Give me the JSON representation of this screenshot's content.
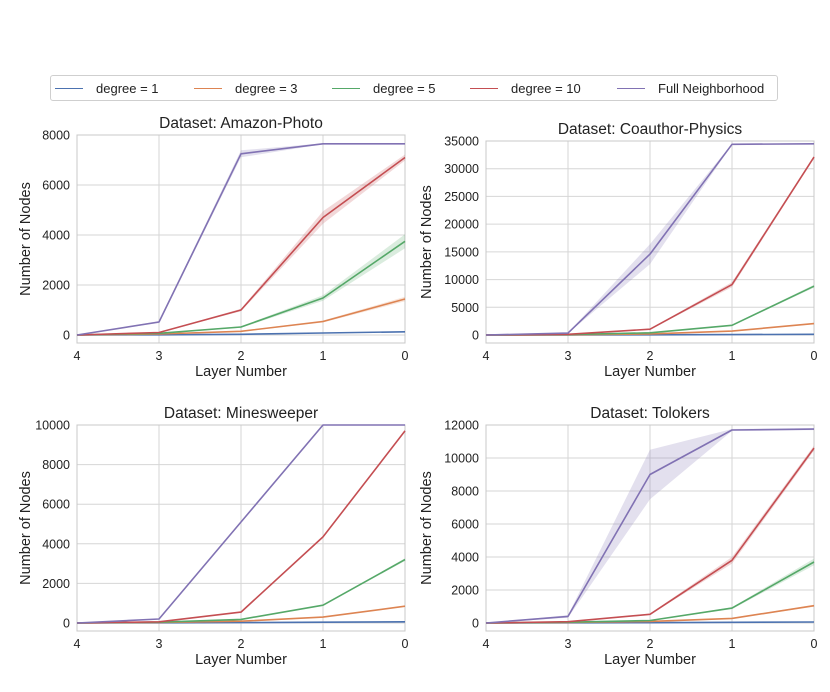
{
  "chart_data": {
    "type": "line",
    "legend": {
      "placement": "top",
      "entries": [
        {
          "name": "degree = 1",
          "color": "#4c72b0"
        },
        {
          "name": "degree = 3",
          "color": "#dd8452"
        },
        {
          "name": "degree = 5",
          "color": "#55a868"
        },
        {
          "name": "degree = 10",
          "color": "#c44e52"
        },
        {
          "name": "Full Neighborhood",
          "color": "#8172b3"
        }
      ]
    },
    "panels": [
      {
        "title": "Dataset: Amazon-Photo",
        "xlabel": "Layer Number",
        "ylabel": "Number of Nodes",
        "x": [
          4,
          3,
          2,
          1,
          0
        ],
        "xlim": [
          4,
          0
        ],
        "ylim": [
          0,
          8000
        ],
        "yticks": [
          0,
          2000,
          4000,
          6000,
          8000
        ],
        "series": [
          {
            "name": "degree = 1",
            "values": [
              0,
              10,
              30,
              80,
              130
            ],
            "band": [
              0,
              0,
              5,
              10,
              15
            ]
          },
          {
            "name": "degree = 3",
            "values": [
              0,
              40,
              150,
              540,
              1440
            ],
            "band": [
              0,
              5,
              20,
              40,
              90
            ]
          },
          {
            "name": "degree = 5",
            "values": [
              0,
              70,
              320,
              1480,
              3750
            ],
            "band": [
              0,
              8,
              30,
              110,
              280
            ]
          },
          {
            "name": "degree = 10",
            "values": [
              0,
              100,
              1000,
              4700,
              7100
            ],
            "band": [
              0,
              10,
              50,
              250,
              120
            ]
          },
          {
            "name": "Full Neighborhood",
            "values": [
              0,
              520,
              7250,
              7650,
              7650
            ],
            "band": [
              0,
              40,
              140,
              20,
              20
            ]
          }
        ]
      },
      {
        "title": "Dataset: Coauthor-Physics",
        "xlabel": "Layer Number",
        "ylabel": "Number of Nodes",
        "x": [
          4,
          3,
          2,
          1,
          0
        ],
        "xlim": [
          4,
          0
        ],
        "ylim": [
          0,
          35000
        ],
        "yticks": [
          0,
          5000,
          10000,
          15000,
          20000,
          25000,
          30000,
          35000
        ],
        "series": [
          {
            "name": "degree = 1",
            "values": [
              0,
              10,
              30,
              70,
              120
            ],
            "band": [
              0,
              0,
              5,
              10,
              10
            ]
          },
          {
            "name": "degree = 3",
            "values": [
              0,
              40,
              200,
              700,
              2050
            ],
            "band": [
              0,
              5,
              20,
              50,
              90
            ]
          },
          {
            "name": "degree = 5",
            "values": [
              0,
              70,
              400,
              1750,
              8800
            ],
            "band": [
              0,
              8,
              40,
              100,
              250
            ]
          },
          {
            "name": "degree = 10",
            "values": [
              0,
              120,
              1050,
              9100,
              32100
            ],
            "band": [
              0,
              15,
              80,
              450,
              250
            ]
          },
          {
            "name": "Full Neighborhood",
            "values": [
              0,
              350,
              14600,
              34400,
              34500
            ],
            "band": [
              0,
              40,
              1800,
              100,
              100
            ]
          }
        ]
      },
      {
        "title": "Dataset: Minesweeper",
        "xlabel": "Layer Number",
        "ylabel": "Number of Nodes",
        "x": [
          4,
          3,
          2,
          1,
          0
        ],
        "xlim": [
          4,
          0
        ],
        "ylim": [
          0,
          10000
        ],
        "yticks": [
          0,
          2000,
          4000,
          6000,
          8000,
          10000
        ],
        "series": [
          {
            "name": "degree = 1",
            "values": [
              0,
              10,
              20,
              40,
              60
            ],
            "band": [
              0,
              0,
              0,
              0,
              0
            ]
          },
          {
            "name": "degree = 3",
            "values": [
              0,
              30,
              90,
              300,
              850
            ],
            "band": [
              0,
              0,
              5,
              10,
              20
            ]
          },
          {
            "name": "degree = 5",
            "values": [
              0,
              40,
              180,
              900,
              3200
            ],
            "band": [
              0,
              0,
              5,
              20,
              70
            ]
          },
          {
            "name": "degree = 10",
            "values": [
              0,
              60,
              550,
              4350,
              9700
            ],
            "band": [
              0,
              0,
              10,
              30,
              40
            ]
          },
          {
            "name": "Full Neighborhood",
            "values": [
              0,
              200,
              5100,
              10000,
              10000
            ],
            "band": [
              0,
              0,
              20,
              0,
              0
            ]
          }
        ]
      },
      {
        "title": "Dataset: Tolokers",
        "xlabel": "Layer Number",
        "ylabel": "Number of Nodes",
        "x": [
          4,
          3,
          2,
          1,
          0
        ],
        "xlim": [
          4,
          0
        ],
        "ylim": [
          0,
          12000
        ],
        "yticks": [
          0,
          2000,
          4000,
          6000,
          8000,
          10000,
          12000
        ],
        "series": [
          {
            "name": "degree = 1",
            "values": [
              0,
              10,
              20,
              40,
              60
            ],
            "band": [
              0,
              0,
              5,
              5,
              5
            ]
          },
          {
            "name": "degree = 3",
            "values": [
              0,
              30,
              100,
              280,
              1050
            ],
            "band": [
              0,
              5,
              15,
              30,
              60
            ]
          },
          {
            "name": "degree = 5",
            "values": [
              0,
              50,
              150,
              900,
              3700
            ],
            "band": [
              0,
              8,
              20,
              60,
              200
            ]
          },
          {
            "name": "degree = 10",
            "values": [
              0,
              80,
              530,
              3800,
              10600
            ],
            "band": [
              0,
              10,
              40,
              200,
              150
            ]
          },
          {
            "name": "Full Neighborhood",
            "values": [
              0,
              400,
              9000,
              11700,
              11750
            ],
            "band": [
              0,
              80,
              1500,
              60,
              60
            ]
          }
        ]
      }
    ]
  }
}
